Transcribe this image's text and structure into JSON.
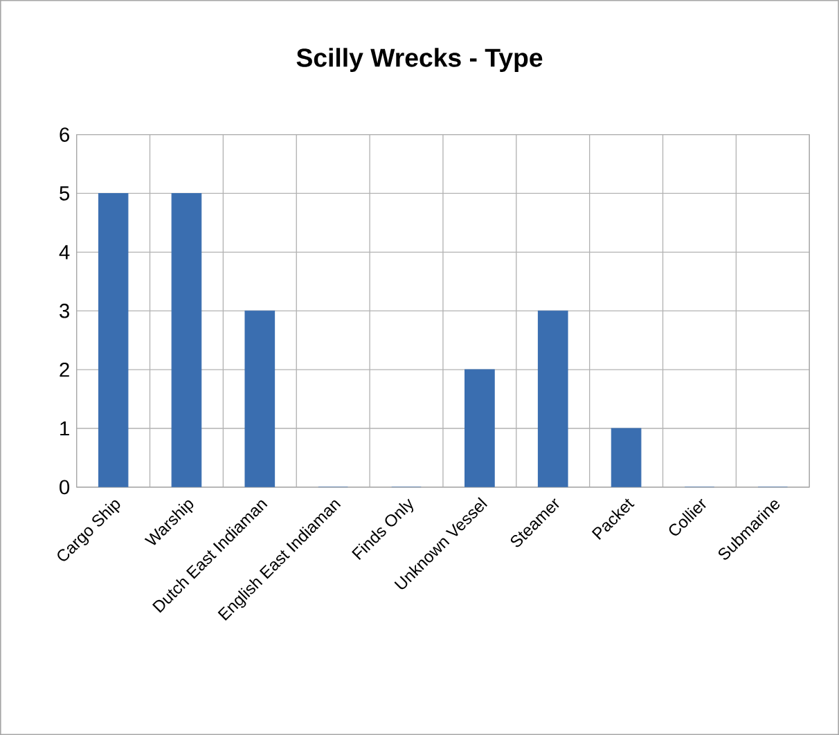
{
  "chart_data": {
    "type": "bar",
    "title": "Scilly Wrecks - Type",
    "categories": [
      "Cargo Ship",
      "Warship",
      "Dutch East Indiaman",
      "English East Indiaman",
      "Finds Only",
      "Unknown Vessel",
      "Steamer",
      "Packet",
      "Collier",
      "Submarine"
    ],
    "values": [
      5,
      5,
      3,
      0,
      0,
      2,
      3,
      1,
      0,
      0
    ],
    "color": "#3a6eb0",
    "ylim": [
      0,
      6
    ],
    "yticks": [
      0,
      1,
      2,
      3,
      4,
      5,
      6
    ],
    "grid": true
  }
}
